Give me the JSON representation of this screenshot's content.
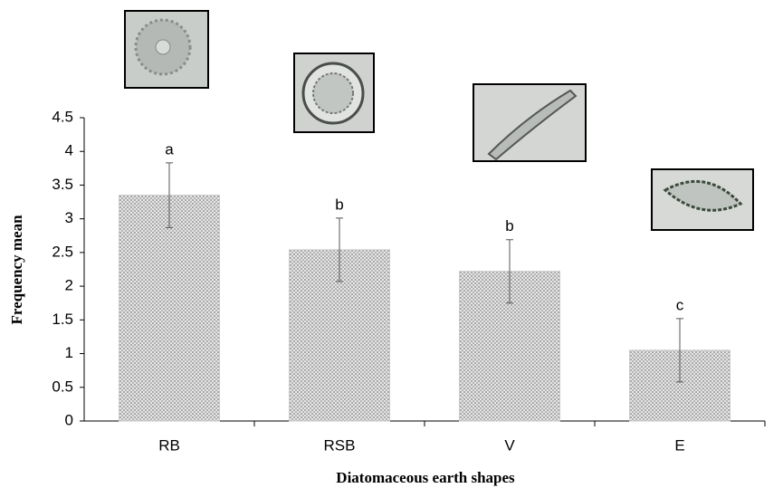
{
  "chart_data": {
    "type": "bar",
    "x_label": "Diatomaceous earth shapes",
    "y_label": "Frequency mean",
    "categories": [
      "RB",
      "RSB",
      "V",
      "E"
    ],
    "values": [
      3.35,
      2.54,
      2.22,
      1.05
    ],
    "errors": [
      0.48,
      0.47,
      0.47,
      0.47
    ],
    "annotations": [
      "a",
      "b",
      "b",
      "c"
    ],
    "color": "#c8c8c8",
    "ylim": [
      0,
      4.5
    ],
    "yticks": [
      0,
      0.5,
      1,
      1.5,
      2,
      2.5,
      3,
      3.5,
      4,
      4.5
    ],
    "grid": false
  }
}
